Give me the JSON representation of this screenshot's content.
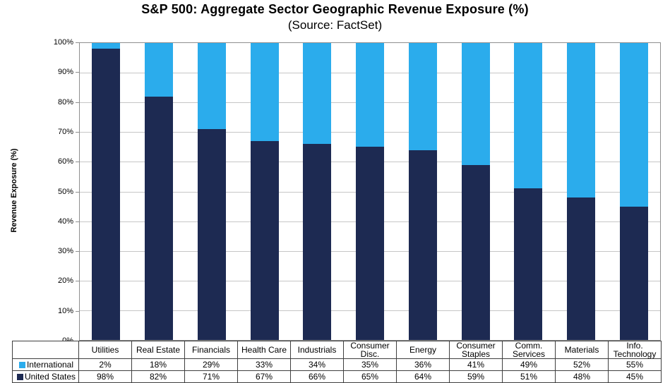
{
  "title": "S&P 500: Aggregate Sector Geographic Revenue Exposure (%)",
  "subtitle": "(Source: FactSet)",
  "y_axis": {
    "label": "Revenue Exposure (%)",
    "ticks": [
      "100%",
      "90%",
      "80%",
      "70%",
      "60%",
      "50%",
      "40%",
      "30%",
      "20%",
      "10%",
      "0%"
    ]
  },
  "chart_data": {
    "type": "bar",
    "stacked": true,
    "title": "S&P 500: Aggregate Sector Geographic Revenue Exposure (%)",
    "subtitle": "(Source: FactSet)",
    "xlabel": "",
    "ylabel": "Revenue Exposure (%)",
    "ylim": [
      0,
      100
    ],
    "grid": true,
    "legend_position": "data-table-left",
    "value_suffix": "%",
    "categories": [
      "Utilities",
      "Real Estate",
      "Financials",
      "Health Care",
      "Industrials",
      "Consumer Disc.",
      "Energy",
      "Consumer Staples",
      "Comm. Services",
      "Materials",
      "Info. Technology"
    ],
    "series": [
      {
        "name": "International",
        "color": "#2BACEC",
        "stack_order": "top",
        "values": [
          2,
          18,
          29,
          33,
          34,
          35,
          36,
          41,
          49,
          52,
          55
        ]
      },
      {
        "name": "United States",
        "color": "#1D2A52",
        "stack_order": "bottom",
        "values": [
          98,
          82,
          71,
          67,
          66,
          65,
          64,
          59,
          51,
          48,
          45
        ]
      }
    ]
  }
}
